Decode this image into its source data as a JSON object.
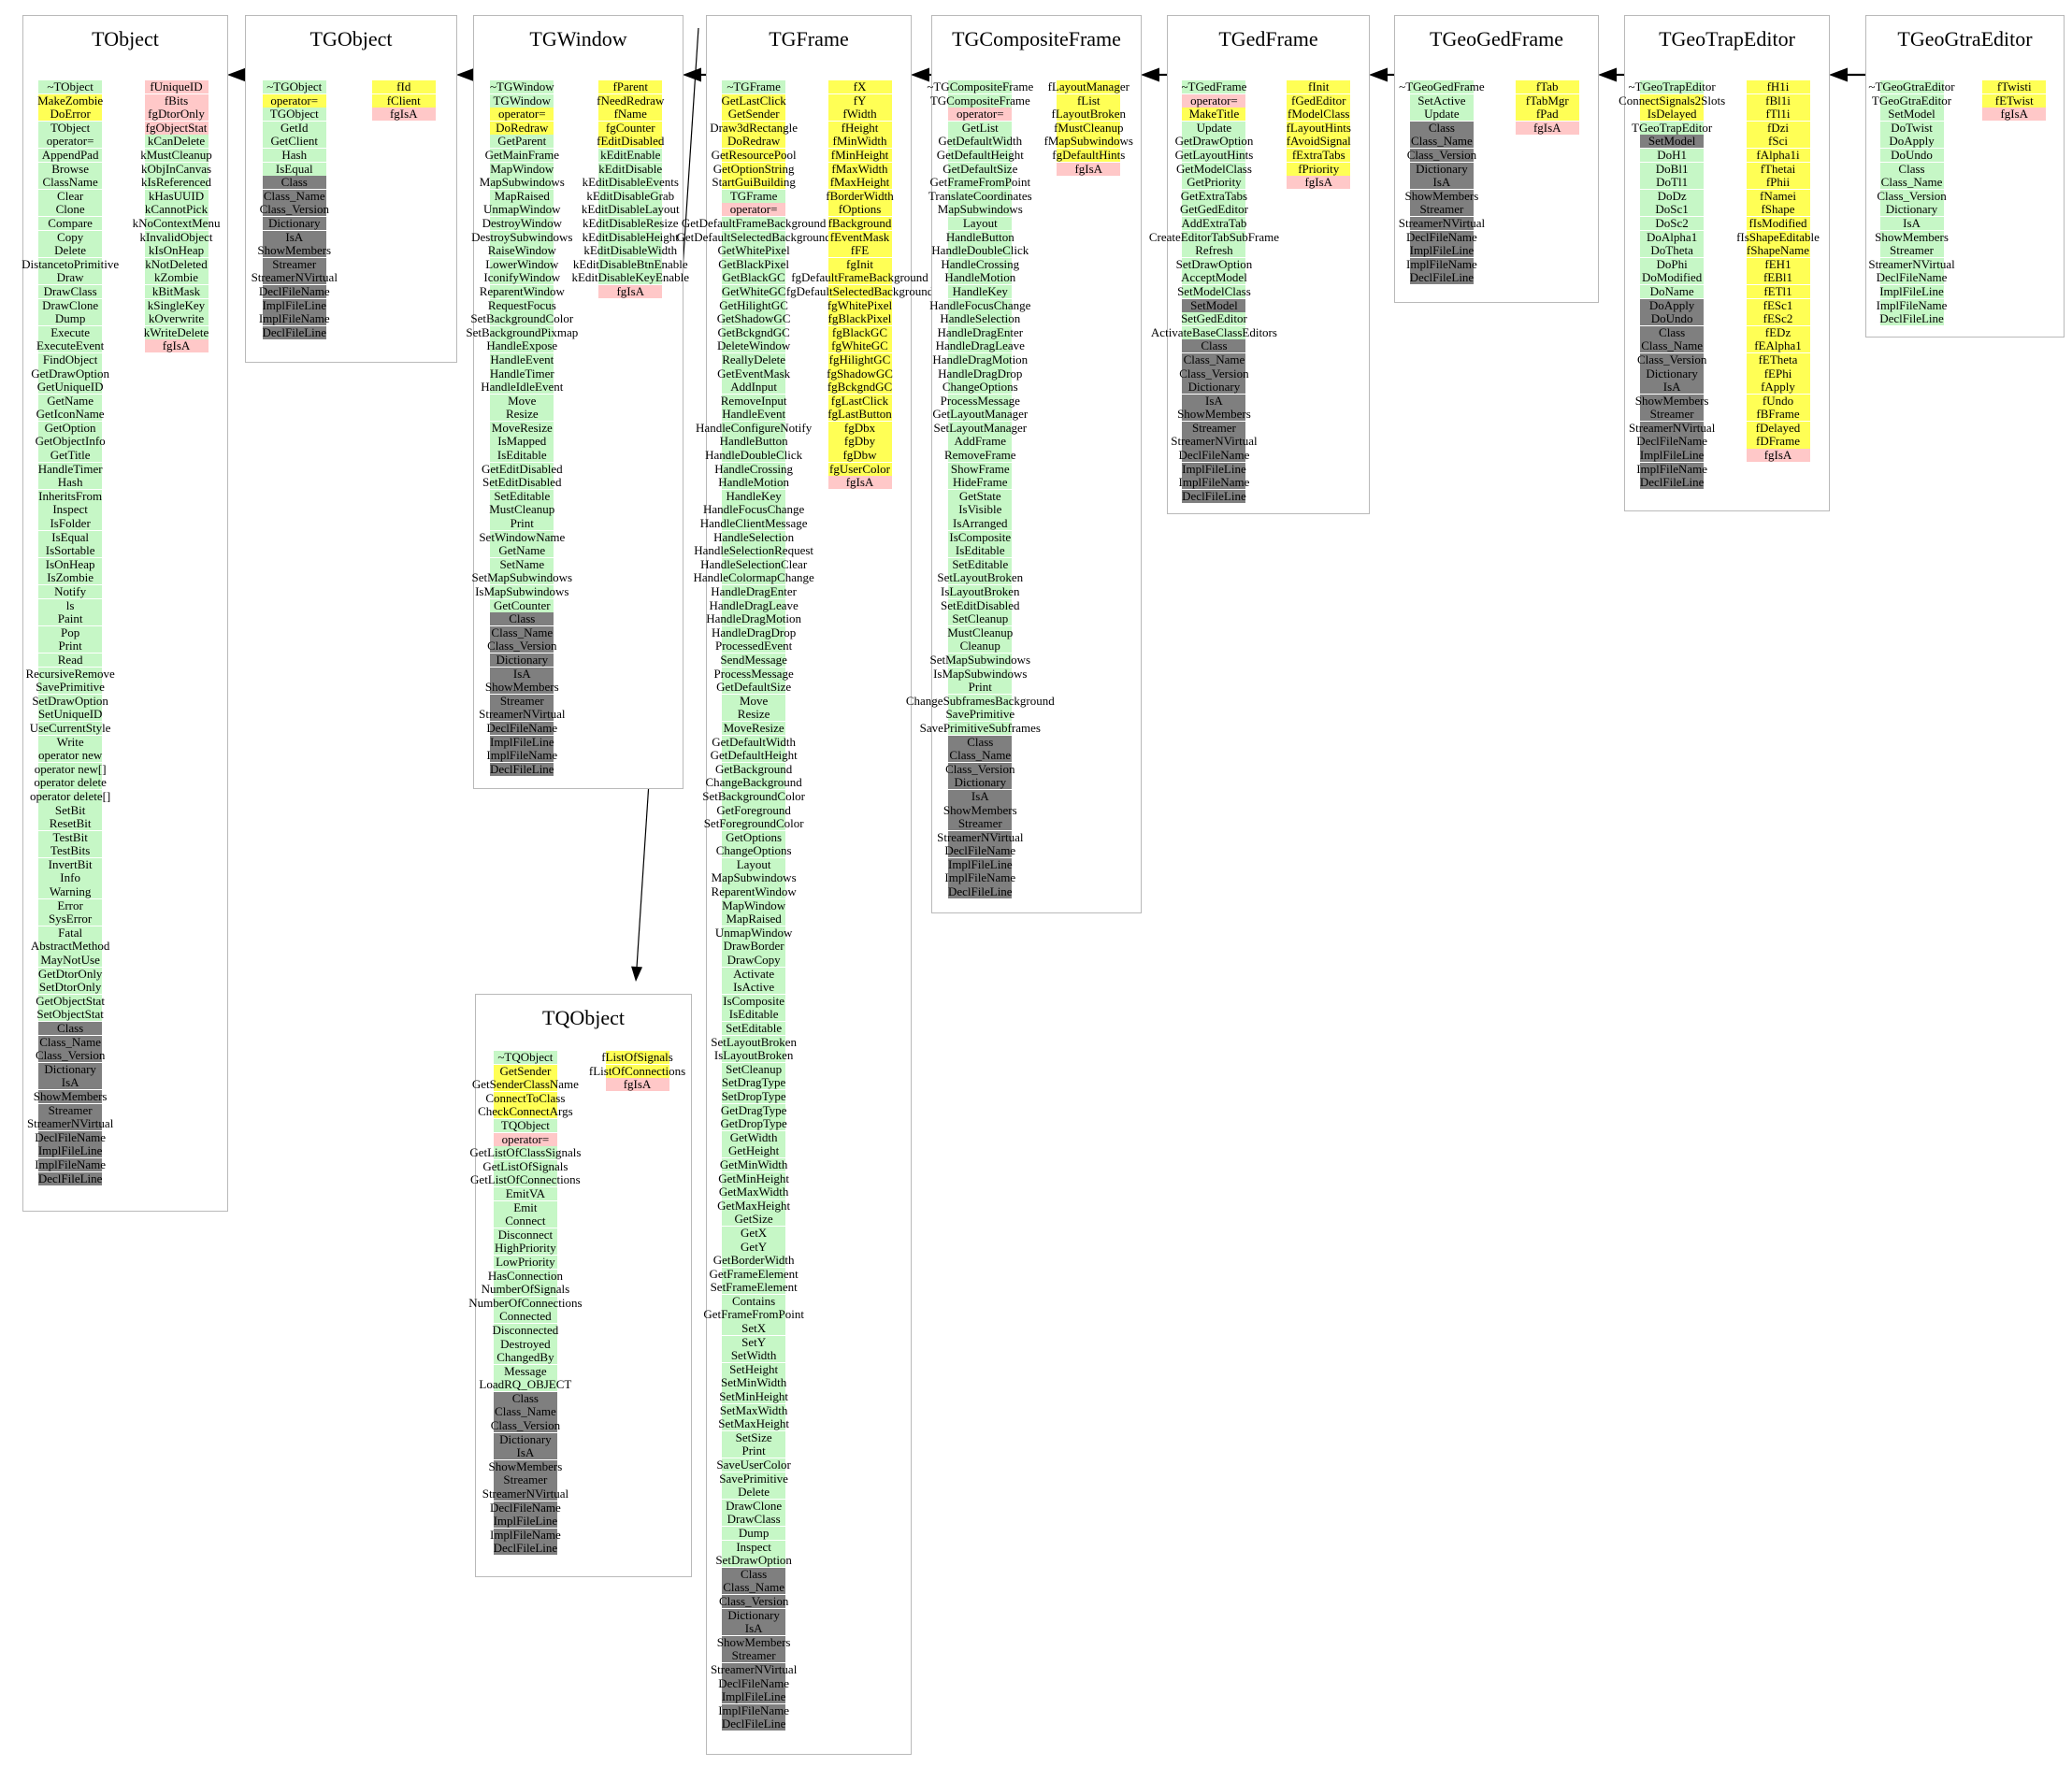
{
  "diagram": {
    "type": "class-inheritance-diagram",
    "colors": {
      "g": "#c6f7c6",
      "y": "#ffff55",
      "p": "#ffc8c8",
      "d": "#7f7f7f"
    },
    "color_legend": {
      "g": "public",
      "y": "protected",
      "p": "private",
      "d": "internal"
    },
    "inheritance": [
      {
        "derived": "TGObject",
        "base": "TObject"
      },
      {
        "derived": "TGWindow",
        "base": "TGObject"
      },
      {
        "derived": "TGFrame",
        "base": "TGWindow"
      },
      {
        "derived": "TGCompositeFrame",
        "base": "TGFrame"
      },
      {
        "derived": "TGedFrame",
        "base": "TGCompositeFrame"
      },
      {
        "derived": "TGeoGedFrame",
        "base": "TGedFrame"
      },
      {
        "derived": "TGeoTrapEditor",
        "base": "TGeoGedFrame"
      },
      {
        "derived": "TGeoGtraEditor",
        "base": "TGeoTrapEditor"
      },
      {
        "derived": "TGFrame",
        "base": "TQObject"
      }
    ],
    "classes": [
      {
        "name": "TObject",
        "methods": [
          "g|~TObject",
          "y|MakeZombie",
          "y|DoError",
          "g|TObject",
          "g|operator=",
          "g|AppendPad",
          "g|Browse",
          "g|ClassName",
          "g|Clear",
          "g|Clone",
          "g|Compare",
          "g|Copy",
          "g|Delete",
          "g|DistancetoPrimitive",
          "g|Draw",
          "g|DrawClass",
          "g|DrawClone",
          "g|Dump",
          "g|Execute",
          "g|ExecuteEvent",
          "g|FindObject",
          "g|GetDrawOption",
          "g|GetUniqueID",
          "g|GetName",
          "g|GetIconName",
          "g|GetOption",
          "g|GetObjectInfo",
          "g|GetTitle",
          "g|HandleTimer",
          "g|Hash",
          "g|InheritsFrom",
          "g|Inspect",
          "g|IsFolder",
          "g|IsEqual",
          "g|IsSortable",
          "g|IsOnHeap",
          "g|IsZombie",
          "g|Notify",
          "g|ls",
          "g|Paint",
          "g|Pop",
          "g|Print",
          "g|Read",
          "g|RecursiveRemove",
          "g|SavePrimitive",
          "g|SetDrawOption",
          "g|SetUniqueID",
          "g|UseCurrentStyle",
          "g|Write",
          "g|operator new",
          "g|operator new[]",
          "g|operator delete",
          "g|operator delete[]",
          "g|SetBit",
          "g|ResetBit",
          "g|TestBit",
          "g|TestBits",
          "g|InvertBit",
          "g|Info",
          "g|Warning",
          "g|Error",
          "g|SysError",
          "g|Fatal",
          "g|AbstractMethod",
          "g|MayNotUse",
          "g|GetDtorOnly",
          "g|SetDtorOnly",
          "g|GetObjectStat",
          "g|SetObjectStat",
          "d|Class",
          "d|Class_Name",
          "d|Class_Version",
          "d|Dictionary",
          "d|IsA",
          "d|ShowMembers",
          "d|Streamer",
          "d|StreamerNVirtual",
          "d|DeclFileName",
          "d|ImplFileLine",
          "d|ImplFileName",
          "d|DeclFileLine"
        ],
        "members": [
          "p|fUniqueID",
          "p|fBits",
          "p|fgDtorOnly",
          "p|fgObjectStat",
          "g|kCanDelete",
          "g|kMustCleanup",
          "g|kObjInCanvas",
          "g|kIsReferenced",
          "g|kHasUUID",
          "g|kCannotPick",
          "g|kNoContextMenu",
          "g|kInvalidObject",
          "g|kIsOnHeap",
          "g|kNotDeleted",
          "g|kZombie",
          "g|kBitMask",
          "g|kSingleKey",
          "g|kOverwrite",
          "g|kWriteDelete",
          "p|fgIsA"
        ]
      },
      {
        "name": "TGObject",
        "methods": [
          "g|~TGObject",
          "y|operator=",
          "g|TGObject",
          "g|GetId",
          "g|GetClient",
          "g|Hash",
          "g|IsEqual",
          "d|Class",
          "d|Class_Name",
          "d|Class_Version",
          "d|Dictionary",
          "d|IsA",
          "d|ShowMembers",
          "d|Streamer",
          "d|StreamerNVirtual",
          "d|DeclFileName",
          "d|ImplFileLine",
          "d|ImplFileName",
          "d|DeclFileLine"
        ],
        "members": [
          "y|fId",
          "y|fClient",
          "p|fgIsA"
        ]
      },
      {
        "name": "TGWindow",
        "methods": [
          "g|~TGWindow",
          "g|TGWindow",
          "y|operator=",
          "y|DoRedraw",
          "g|GetParent",
          "g|GetMainFrame",
          "g|MapWindow",
          "g|MapSubwindows",
          "g|MapRaised",
          "g|UnmapWindow",
          "g|DestroyWindow",
          "g|DestroySubwindows",
          "g|RaiseWindow",
          "g|LowerWindow",
          "g|IconifyWindow",
          "g|ReparentWindow",
          "g|RequestFocus",
          "g|SetBackgroundColor",
          "g|SetBackgroundPixmap",
          "g|HandleExpose",
          "g|HandleEvent",
          "g|HandleTimer",
          "g|HandleIdleEvent",
          "g|Move",
          "g|Resize",
          "g|MoveResize",
          "g|IsMapped",
          "g|IsEditable",
          "g|GetEditDisabled",
          "g|SetEditDisabled",
          "g|SetEditable",
          "g|MustCleanup",
          "g|Print",
          "g|SetWindowName",
          "g|GetName",
          "g|SetName",
          "g|SetMapSubwindows",
          "g|IsMapSubwindows",
          "g|GetCounter",
          "d|Class",
          "d|Class_Name",
          "d|Class_Version",
          "d|Dictionary",
          "d|IsA",
          "d|ShowMembers",
          "d|Streamer",
          "d|StreamerNVirtual",
          "d|DeclFileName",
          "d|ImplFileLine",
          "d|ImplFileName",
          "d|DeclFileLine"
        ],
        "members": [
          "y|fParent",
          "y|fNeedRedraw",
          "y|fName",
          "y|fgCounter",
          "y|fEditDisabled",
          "g|kEditEnable",
          "g|kEditDisable",
          "g|kEditDisableEvents",
          "g|kEditDisableGrab",
          "g|kEditDisableLayout",
          "g|kEditDisableResize",
          "g|kEditDisableHeight",
          "g|kEditDisableWidth",
          "g|kEditDisableBtnEnable",
          "g|kEditDisableKeyEnable",
          "p|fgIsA"
        ]
      },
      {
        "name": "TGFrame",
        "methods": [
          "g|~TGFrame",
          "y|GetLastClick",
          "y|GetSender",
          "y|Draw3dRectangle",
          "y|DoRedraw",
          "y|GetResourcePool",
          "y|GetOptionString",
          "y|StartGuiBuilding",
          "g|TGFrame",
          "p|operator=",
          "g|GetDefaultFrameBackground",
          "g|GetDefaultSelectedBackground",
          "g|GetWhitePixel",
          "g|GetBlackPixel",
          "g|GetBlackGC",
          "g|GetWhiteGC",
          "g|GetHilightGC",
          "g|GetShadowGC",
          "g|GetBckgndGC",
          "g|DeleteWindow",
          "g|ReallyDelete",
          "g|GetEventMask",
          "g|AddInput",
          "g|RemoveInput",
          "g|HandleEvent",
          "g|HandleConfigureNotify",
          "g|HandleButton",
          "g|HandleDoubleClick",
          "g|HandleCrossing",
          "g|HandleMotion",
          "g|HandleKey",
          "g|HandleFocusChange",
          "g|HandleClientMessage",
          "g|HandleSelection",
          "g|HandleSelectionRequest",
          "g|HandleSelectionClear",
          "g|HandleColormapChange",
          "g|HandleDragEnter",
          "g|HandleDragLeave",
          "g|HandleDragMotion",
          "g|HandleDragDrop",
          "g|ProcessedEvent",
          "g|SendMessage",
          "g|ProcessMessage",
          "g|GetDefaultSize",
          "g|Move",
          "g|Resize",
          "g|MoveResize",
          "g|GetDefaultWidth",
          "g|GetDefaultHeight",
          "g|GetBackground",
          "g|ChangeBackground",
          "g|SetBackgroundColor",
          "g|GetForeground",
          "g|SetForegroundColor",
          "g|GetOptions",
          "g|ChangeOptions",
          "g|Layout",
          "g|MapSubwindows",
          "g|ReparentWindow",
          "g|MapWindow",
          "g|MapRaised",
          "g|UnmapWindow",
          "g|DrawBorder",
          "g|DrawCopy",
          "g|Activate",
          "g|IsActive",
          "g|IsComposite",
          "g|IsEditable",
          "g|SetEditable",
          "g|SetLayoutBroken",
          "g|IsLayoutBroken",
          "g|SetCleanup",
          "g|SetDragType",
          "g|SetDropType",
          "g|GetDragType",
          "g|GetDropType",
          "g|GetWidth",
          "g|GetHeight",
          "g|GetMinWidth",
          "g|GetMinHeight",
          "g|GetMaxWidth",
          "g|GetMaxHeight",
          "g|GetSize",
          "g|GetX",
          "g|GetY",
          "g|GetBorderWidth",
          "g|GetFrameElement",
          "g|SetFrameElement",
          "g|Contains",
          "g|GetFrameFromPoint",
          "g|SetX",
          "g|SetY",
          "g|SetWidth",
          "g|SetHeight",
          "g|SetMinWidth",
          "g|SetMinHeight",
          "g|SetMaxWidth",
          "g|SetMaxHeight",
          "g|SetSize",
          "g|Print",
          "g|SaveUserColor",
          "g|SavePrimitive",
          "g|Delete",
          "g|DrawClone",
          "g|DrawClass",
          "g|Dump",
          "g|Inspect",
          "g|SetDrawOption",
          "d|Class",
          "d|Class_Name",
          "d|Class_Version",
          "d|Dictionary",
          "d|IsA",
          "d|ShowMembers",
          "d|Streamer",
          "d|StreamerNVirtual",
          "d|DeclFileName",
          "d|ImplFileLine",
          "d|ImplFileName",
          "d|DeclFileLine"
        ],
        "members": [
          "y|fX",
          "y|fY",
          "y|fWidth",
          "y|fHeight",
          "y|fMinWidth",
          "y|fMinHeight",
          "y|fMaxWidth",
          "y|fMaxHeight",
          "y|fBorderWidth",
          "y|fOptions",
          "y|fBackground",
          "y|fEventMask",
          "y|fFE",
          "y|fgInit",
          "y|fgDefaultFrameBackground",
          "y|fgDefaultSelectedBackground",
          "y|fgWhitePixel",
          "y|fgBlackPixel",
          "y|fgBlackGC",
          "y|fgWhiteGC",
          "y|fgHilightGC",
          "y|fgShadowGC",
          "y|fgBckgndGC",
          "y|fgLastClick",
          "y|fgLastButton",
          "y|fgDbx",
          "y|fgDby",
          "y|fgDbw",
          "y|fgUserColor",
          "p|fgIsA"
        ]
      },
      {
        "name": "TGCompositeFrame",
        "methods": [
          "g|~TGCompositeFrame",
          "g|TGCompositeFrame",
          "p|operator=",
          "g|GetList",
          "g|GetDefaultWidth",
          "g|GetDefaultHeight",
          "g|GetDefaultSize",
          "g|GetFrameFromPoint",
          "g|TranslateCoordinates",
          "g|MapSubwindows",
          "g|Layout",
          "g|HandleButton",
          "g|HandleDoubleClick",
          "g|HandleCrossing",
          "g|HandleMotion",
          "g|HandleKey",
          "g|HandleFocusChange",
          "g|HandleSelection",
          "g|HandleDragEnter",
          "g|HandleDragLeave",
          "g|HandleDragMotion",
          "g|HandleDragDrop",
          "g|ChangeOptions",
          "g|ProcessMessage",
          "g|GetLayoutManager",
          "g|SetLayoutManager",
          "g|AddFrame",
          "g|RemoveFrame",
          "g|ShowFrame",
          "g|HideFrame",
          "g|GetState",
          "g|IsVisible",
          "g|IsArranged",
          "g|IsComposite",
          "g|IsEditable",
          "g|SetEditable",
          "g|SetLayoutBroken",
          "g|IsLayoutBroken",
          "g|SetEditDisabled",
          "g|SetCleanup",
          "g|MustCleanup",
          "g|Cleanup",
          "g|SetMapSubwindows",
          "g|IsMapSubwindows",
          "g|Print",
          "g|ChangeSubframesBackground",
          "g|SavePrimitive",
          "g|SavePrimitiveSubframes",
          "d|Class",
          "d|Class_Name",
          "d|Class_Version",
          "d|Dictionary",
          "d|IsA",
          "d|ShowMembers",
          "d|Streamer",
          "d|StreamerNVirtual",
          "d|DeclFileName",
          "d|ImplFileLine",
          "d|ImplFileName",
          "d|DeclFileLine"
        ],
        "members": [
          "y|fLayoutManager",
          "y|fList",
          "y|fLayoutBroken",
          "y|fMustCleanup",
          "y|fMapSubwindows",
          "y|fgDefaultHints",
          "p|fgIsA"
        ]
      },
      {
        "name": "TGedFrame",
        "methods": [
          "g|~TGedFrame",
          "p|operator=",
          "y|MakeTitle",
          "g|Update",
          "g|GetDrawOption",
          "g|GetLayoutHints",
          "g|GetModelClass",
          "g|GetPriority",
          "g|GetExtraTabs",
          "g|GetGedEditor",
          "g|AddExtraTab",
          "g|CreateEditorTabSubFrame",
          "g|Refresh",
          "g|SetDrawOption",
          "g|AcceptModel",
          "g|SetModelClass",
          "d|SetModel",
          "g|SetGedEditor",
          "g|ActivateBaseClassEditors",
          "d|Class",
          "d|Class_Name",
          "d|Class_Version",
          "d|Dictionary",
          "d|IsA",
          "d|ShowMembers",
          "d|Streamer",
          "d|StreamerNVirtual",
          "d|DeclFileName",
          "d|ImplFileLine",
          "d|ImplFileName",
          "d|DeclFileLine"
        ],
        "members": [
          "y|fInit",
          "y|fGedEditor",
          "y|fModelClass",
          "y|fLayoutHints",
          "y|fAvoidSignal",
          "y|fExtraTabs",
          "y|fPriority",
          "p|fgIsA"
        ]
      },
      {
        "name": "TGeoGedFrame",
        "methods": [
          "g|~TGeoGedFrame",
          "g|SetActive",
          "g|Update",
          "d|Class",
          "d|Class_Name",
          "d|Class_Version",
          "d|Dictionary",
          "d|IsA",
          "d|ShowMembers",
          "d|Streamer",
          "d|StreamerNVirtual",
          "d|DeclFileName",
          "d|ImplFileLine",
          "d|ImplFileName",
          "d|DeclFileLine"
        ],
        "members": [
          "y|fTab",
          "y|fTabMgr",
          "y|fPad",
          "p|fgIsA"
        ]
      },
      {
        "name": "TGeoTrapEditor",
        "methods": [
          "g|~TGeoTrapEditor",
          "y|ConnectSignals2Slots",
          "y|IsDelayed",
          "g|TGeoTrapEditor",
          "d|SetModel",
          "g|DoH1",
          "g|DoBl1",
          "g|DoTl1",
          "g|DoDz",
          "g|DoSc1",
          "g|DoSc2",
          "g|DoAlpha1",
          "g|DoTheta",
          "g|DoPhi",
          "g|DoModified",
          "g|DoName",
          "d|DoApply",
          "d|DoUndo",
          "d|Class",
          "d|Class_Name",
          "d|Class_Version",
          "d|Dictionary",
          "d|IsA",
          "d|ShowMembers",
          "d|Streamer",
          "d|StreamerNVirtual",
          "d|DeclFileName",
          "d|ImplFileLine",
          "d|ImplFileName",
          "d|DeclFileLine"
        ],
        "members": [
          "y|fH1i",
          "y|fBl1i",
          "y|fTl1i",
          "y|fDzi",
          "y|fSci",
          "y|fAlpha1i",
          "y|fThetai",
          "y|fPhii",
          "y|fNamei",
          "y|fShape",
          "y|fIsModified",
          "y|fIsShapeEditable",
          "y|fShapeName",
          "y|fEH1",
          "y|fEBl1",
          "y|fETl1",
          "y|fESc1",
          "y|fESc2",
          "y|fEDz",
          "y|fEAlpha1",
          "y|fETheta",
          "y|fEPhi",
          "y|fApply",
          "y|fUndo",
          "y|fBFrame",
          "y|fDelayed",
          "y|fDFrame",
          "p|fgIsA"
        ]
      },
      {
        "name": "TGeoGtraEditor",
        "methods": [
          "g|~TGeoGtraEditor",
          "g|TGeoGtraEditor",
          "g|SetModel",
          "g|DoTwist",
          "g|DoApply",
          "g|DoUndo",
          "g|Class",
          "g|Class_Name",
          "g|Class_Version",
          "g|Dictionary",
          "g|IsA",
          "g|ShowMembers",
          "g|Streamer",
          "g|StreamerNVirtual",
          "g|DeclFileName",
          "g|ImplFileLine",
          "g|ImplFileName",
          "g|DeclFileLine"
        ],
        "members": [
          "y|fTwisti",
          "y|fETwist",
          "p|fgIsA"
        ]
      },
      {
        "name": "TQObject",
        "methods": [
          "g|~TQObject",
          "y|GetSender",
          "y|GetSenderClassName",
          "y|ConnectToClass",
          "y|CheckConnectArgs",
          "g|TQObject",
          "p|operator=",
          "g|GetListOfClassSignals",
          "g|GetListOfSignals",
          "g|GetListOfConnections",
          "g|EmitVA",
          "g|Emit",
          "g|Connect",
          "g|Disconnect",
          "g|HighPriority",
          "g|LowPriority",
          "g|HasConnection",
          "g|NumberOfSignals",
          "g|NumberOfConnections",
          "g|Connected",
          "g|Disconnected",
          "g|Destroyed",
          "g|ChangedBy",
          "g|Message",
          "g|LoadRQ_OBJECT",
          "d|Class",
          "d|Class_Name",
          "d|Class_Version",
          "d|Dictionary",
          "d|IsA",
          "d|ShowMembers",
          "d|Streamer",
          "d|StreamerNVirtual",
          "d|DeclFileName",
          "d|ImplFileLine",
          "d|ImplFileName",
          "d|DeclFileLine"
        ],
        "members": [
          "y|fListOfSignals",
          "y|fListOfConnections",
          "p|fgIsA"
        ]
      }
    ]
  }
}
